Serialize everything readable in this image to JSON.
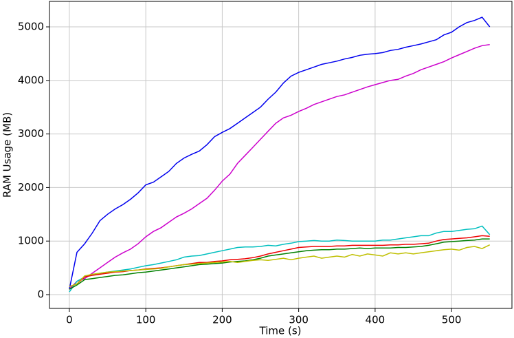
{
  "chart_data": {
    "type": "line",
    "x_label": "Time (s)",
    "y_label": "RAM Usage (MB)",
    "x": [
      0,
      10,
      20,
      30,
      40,
      50,
      60,
      70,
      80,
      90,
      100,
      110,
      120,
      130,
      140,
      150,
      160,
      170,
      180,
      190,
      200,
      210,
      220,
      230,
      240,
      250,
      260,
      270,
      280,
      290,
      300,
      310,
      320,
      330,
      340,
      350,
      360,
      370,
      380,
      390,
      400,
      410,
      420,
      430,
      440,
      450,
      460,
      470,
      480,
      490,
      500,
      510,
      520,
      530,
      540,
      550
    ],
    "series": [
      {
        "color": "#0000ee",
        "values": [
          100,
          790,
          950,
          1150,
          1380,
          1500,
          1600,
          1680,
          1780,
          1900,
          2050,
          2100,
          2200,
          2300,
          2450,
          2550,
          2620,
          2680,
          2800,
          2950,
          3030,
          3100,
          3200,
          3300,
          3400,
          3500,
          3650,
          3780,
          3950,
          4080,
          4150,
          4200,
          4250,
          4300,
          4330,
          4360,
          4400,
          4430,
          4470,
          4490,
          4500,
          4520,
          4560,
          4580,
          4620,
          4650,
          4680,
          4720,
          4760,
          4850,
          4900,
          5000,
          5080,
          5120,
          5180,
          5000
        ]
      },
      {
        "color": "#cc00cc",
        "values": [
          100,
          250,
          300,
          400,
          500,
          600,
          700,
          780,
          850,
          950,
          1080,
          1180,
          1250,
          1350,
          1450,
          1520,
          1600,
          1700,
          1800,
          1950,
          2120,
          2250,
          2450,
          2600,
          2750,
          2900,
          3050,
          3200,
          3300,
          3350,
          3420,
          3480,
          3550,
          3600,
          3650,
          3700,
          3730,
          3780,
          3830,
          3880,
          3920,
          3960,
          4000,
          4020,
          4080,
          4130,
          4200,
          4250,
          4300,
          4350,
          4420,
          4480,
          4540,
          4600,
          4650,
          4670
        ]
      },
      {
        "color": "#00bfbf",
        "values": [
          50,
          250,
          330,
          370,
          400,
          420,
          440,
          460,
          480,
          510,
          540,
          560,
          590,
          620,
          650,
          700,
          720,
          730,
          760,
          790,
          820,
          850,
          880,
          890,
          890,
          900,
          920,
          910,
          940,
          960,
          990,
          1000,
          1010,
          1000,
          1000,
          1020,
          1010,
          1000,
          1000,
          1000,
          1000,
          1020,
          1020,
          1040,
          1060,
          1080,
          1100,
          1100,
          1150,
          1180,
          1180,
          1200,
          1220,
          1230,
          1280,
          1120
        ]
      },
      {
        "color": "#ee0000",
        "values": [
          150,
          200,
          330,
          360,
          380,
          400,
          420,
          430,
          450,
          460,
          480,
          490,
          500,
          520,
          540,
          560,
          580,
          600,
          600,
          620,
          630,
          650,
          660,
          670,
          690,
          720,
          760,
          790,
          820,
          850,
          880,
          890,
          900,
          900,
          900,
          910,
          910,
          920,
          920,
          920,
          920,
          920,
          930,
          930,
          940,
          940,
          950,
          960,
          1000,
          1030,
          1040,
          1050,
          1060,
          1080,
          1100,
          1090
        ]
      },
      {
        "color": "#008000",
        "values": [
          100,
          180,
          280,
          300,
          320,
          340,
          360,
          370,
          390,
          410,
          420,
          440,
          460,
          480,
          500,
          520,
          540,
          560,
          570,
          580,
          590,
          610,
          620,
          630,
          650,
          680,
          720,
          740,
          760,
          780,
          800,
          820,
          830,
          840,
          840,
          850,
          850,
          860,
          870,
          860,
          870,
          870,
          870,
          880,
          880,
          890,
          900,
          920,
          950,
          980,
          990,
          1000,
          1010,
          1020,
          1040,
          1040
        ]
      },
      {
        "color": "#bfbf00",
        "values": [
          150,
          200,
          350,
          380,
          400,
          420,
          430,
          440,
          450,
          460,
          470,
          480,
          490,
          520,
          540,
          560,
          570,
          580,
          590,
          600,
          610,
          620,
          600,
          620,
          640,
          650,
          640,
          660,
          680,
          650,
          680,
          700,
          720,
          680,
          700,
          720,
          700,
          750,
          720,
          760,
          740,
          720,
          780,
          760,
          780,
          760,
          780,
          800,
          820,
          840,
          850,
          830,
          880,
          900,
          860,
          930
        ]
      }
    ],
    "xlim": [
      -26,
      579
    ],
    "ylim": [
      -257,
      5476
    ],
    "xticks": [
      0,
      100,
      200,
      300,
      400,
      500
    ],
    "yticks": [
      0,
      1000,
      2000,
      3000,
      4000,
      5000
    ],
    "grid": true
  }
}
